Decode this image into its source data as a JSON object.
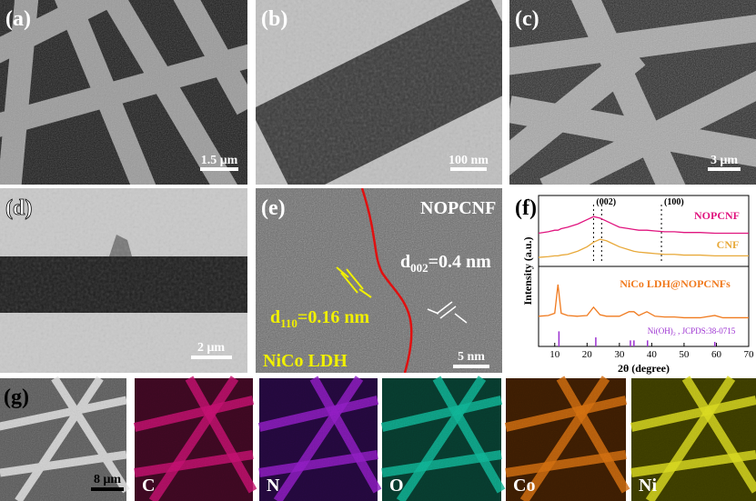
{
  "panels": [
    {
      "label": "(a)",
      "scale_bar": "1.5 μm"
    },
    {
      "label": "(b)",
      "scale_bar": "100 nm"
    },
    {
      "label": "(c)",
      "scale_bar": "3 μm"
    },
    {
      "label": "(d)",
      "scale_bar": "2 μm"
    },
    {
      "label": "(e)",
      "scale_bar": "5 nm",
      "texts": {
        "material": "NOPCNF",
        "d002": {
          "d": "d",
          "sub": "002",
          "rest": "=0.4 nm"
        },
        "d110": {
          "d": "d",
          "sub": "110",
          "rest": "=0.16 nm"
        },
        "phase": "NiCo LDH"
      }
    },
    {
      "label": "(f)"
    },
    {
      "label": "(g)",
      "scale_bar": "8 μm"
    }
  ],
  "maps": [
    "C",
    "N",
    "O",
    "Co",
    "Ni"
  ],
  "chart_data": {
    "type": "line",
    "xlabel": "2θ (degree)",
    "ylabel": "Intensity (a.u.)",
    "xlim": [
      5,
      70
    ],
    "xticks": [
      10,
      20,
      30,
      40,
      50,
      60,
      70
    ],
    "ylim": [
      0,
      10
    ],
    "x": [
      5,
      8,
      10,
      11,
      12,
      14,
      17,
      20,
      22,
      24,
      26,
      28,
      30,
      33,
      34.5,
      36,
      38.5,
      41,
      44,
      47,
      50,
      55,
      59.5,
      62,
      66,
      70
    ],
    "series": [
      {
        "name": "NOPCNF",
        "color": "#e0157f",
        "values": [
          7.5,
          7.6,
          7.7,
          7.7,
          7.8,
          7.9,
          8.1,
          8.4,
          8.6,
          8.5,
          8.3,
          8.1,
          7.9,
          7.8,
          7.75,
          7.7,
          7.7,
          7.65,
          7.6,
          7.6,
          7.55,
          7.55,
          7.5,
          7.5,
          7.5,
          7.5
        ]
      },
      {
        "name": "CNF",
        "color": "#e8a93a",
        "values": [
          5.9,
          5.95,
          6.0,
          6.0,
          6.05,
          6.1,
          6.3,
          6.6,
          6.9,
          7.1,
          7.0,
          6.8,
          6.6,
          6.4,
          6.3,
          6.25,
          6.2,
          6.15,
          6.1,
          6.1,
          6.05,
          6.05,
          6.0,
          6.0,
          6.0,
          6.0
        ]
      },
      {
        "name": "NiCo LDH@NOPCNFs",
        "color": "#f07a1e",
        "values": [
          2.0,
          2.05,
          2.2,
          4.1,
          2.2,
          2.05,
          2.0,
          2.05,
          2.6,
          2.1,
          2.0,
          2.0,
          2.0,
          2.3,
          2.3,
          2.05,
          2.3,
          2.0,
          1.95,
          1.95,
          1.9,
          1.9,
          2.05,
          1.9,
          1.9,
          1.9
        ]
      }
    ],
    "reference": {
      "name": "Ni(OH)₂ , JCPDS:38-0715",
      "color": "#9b30d0",
      "x": [
        11.3,
        22.7,
        33.4,
        34.5,
        38.7,
        59.5
      ],
      "values": [
        1.0,
        0.6,
        0.4,
        0.4,
        0.4,
        0.3
      ]
    },
    "annotations": [
      {
        "text": "(002)",
        "x": 22
      },
      {
        "text": "(100)",
        "x": 43
      }
    ],
    "peak_lines": [
      22,
      24.5,
      43
    ]
  }
}
